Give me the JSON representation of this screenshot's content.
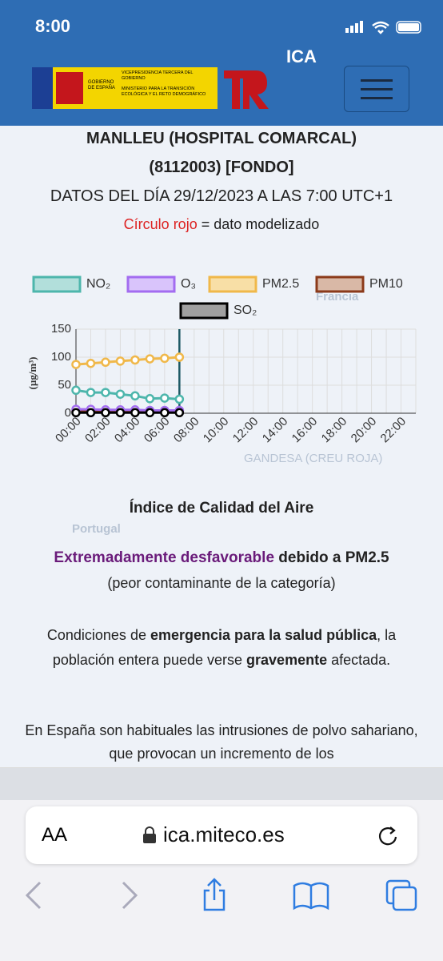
{
  "status_bar": {
    "time": "8:00"
  },
  "header": {
    "app_title": "ICA",
    "logo": {
      "country": "GOBIERNO DE ESPAÑA",
      "office": "VICEPRESIDENCIA TERCERA DEL GOBIERNO",
      "ministry": "MINISTERIO PARA LA TRANSICIÓN ECOLÓGICA Y EL RETO DEMOGRÁFICO"
    }
  },
  "station": {
    "name": "MANLLEU (HOSPITAL COMARCAL)",
    "code": "(8112003) [FONDO]",
    "date": "DATOS DEL DÍA 29/12/2023 A LAS 7:00 UTC+1",
    "note_red": "Círculo rojo",
    "note_rest": "= dato modelizado"
  },
  "chart_data": {
    "type": "line",
    "ylabel": "(µg/m³)",
    "categories": [
      "00:00",
      null,
      "02:00",
      null,
      "04:00",
      null,
      "06:00",
      null,
      "08:00",
      null,
      "10:00",
      null,
      "12:00",
      null,
      "14:00",
      null,
      "16:00",
      null,
      "18:00",
      null,
      "20:00",
      null,
      "22:00",
      null
    ],
    "ylim": [
      0,
      150
    ],
    "yticks": [
      0,
      50,
      100,
      150
    ],
    "grid": true,
    "series": [
      {
        "name": "NO₂",
        "color": "#4db6ac",
        "fill": "#b2dfdb",
        "values": [
          41,
          37,
          37,
          34,
          31,
          26,
          27,
          25,
          null,
          null,
          null,
          null,
          null,
          null,
          null,
          null,
          null,
          null,
          null,
          null,
          null,
          null,
          null,
          null
        ]
      },
      {
        "name": "O₃",
        "color": "#a36cf0",
        "fill": "#d9c4fb",
        "values": [
          7,
          7,
          6,
          6,
          6,
          5,
          5,
          5,
          null,
          null,
          null,
          null,
          null,
          null,
          null,
          null,
          null,
          null,
          null,
          null,
          null,
          null,
          null,
          null
        ]
      },
      {
        "name": "PM2.5",
        "color": "#f0b84a",
        "fill": "#f8dfa6",
        "values": [
          87,
          89,
          91,
          93,
          95,
          97,
          98,
          100,
          null,
          null,
          null,
          null,
          null,
          null,
          null,
          null,
          null,
          null,
          null,
          null,
          null,
          null,
          null,
          null
        ]
      },
      {
        "name": "PM10",
        "color": "#8b3a1a",
        "fill": "#d9b8a6",
        "values": [
          4,
          4,
          4,
          4,
          4,
          4,
          4,
          4,
          null,
          null,
          null,
          null,
          null,
          null,
          null,
          null,
          null,
          null,
          null,
          null,
          null,
          null,
          null,
          null
        ]
      },
      {
        "name": "SO₂",
        "color": "#000000",
        "fill": "#a0a0a0",
        "values": [
          1,
          1,
          1,
          1,
          1,
          1,
          1,
          1,
          null,
          null,
          null,
          null,
          null,
          null,
          null,
          null,
          null,
          null,
          null,
          null,
          null,
          null,
          null,
          null
        ]
      }
    ]
  },
  "index": {
    "title": "Índice de Calidad del Aire",
    "level": "Extremadamente desfavorable",
    "reason": "debido a PM2.5",
    "detail": "(peor contaminante de la categoría)"
  },
  "advice": {
    "p1": "Condiciones de",
    "b1": "emergencia para la salud pública",
    "p2": ", la población entera puede verse",
    "b2": "gravemente",
    "p3": "afectada."
  },
  "info": "En España son habituales las intrusiones de polvo sahariano, que provocan un incremento de los",
  "map_labels": {
    "country1": "Francia",
    "country2": "Portugal",
    "station": "GANDESA (CREU ROJA)"
  },
  "browser": {
    "text_size": "AA",
    "url": "ica.miteco.es"
  }
}
